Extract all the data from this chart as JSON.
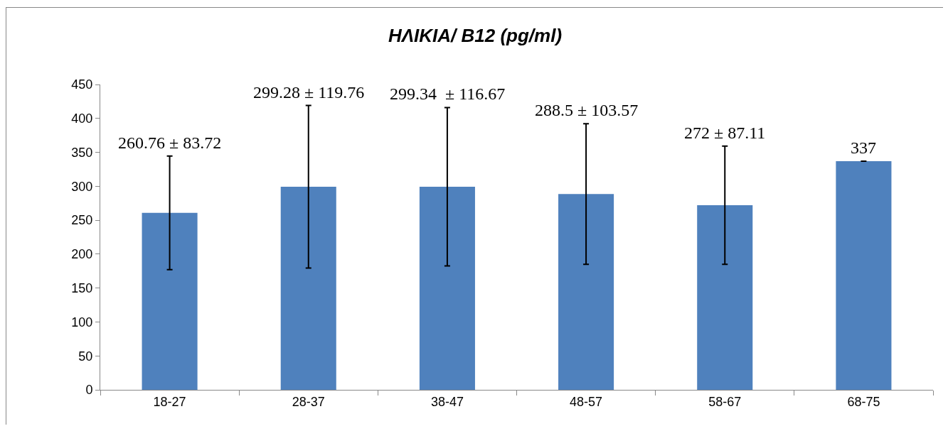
{
  "chart_data": {
    "type": "bar",
    "title": "ΗΛΙΚΙΑ/ B12 (pg/ml)",
    "categories": [
      "18-27",
      "28-37",
      "38-47",
      "48-57",
      "58-67",
      "68-75"
    ],
    "values": [
      260.76,
      299.28,
      299.34,
      288.5,
      272,
      337
    ],
    "errors": [
      83.72,
      119.76,
      116.67,
      103.57,
      87.11,
      0
    ],
    "annotations": [
      {
        "text": "260.76 ± 83.72",
        "x": "18-27",
        "y": 344.48
      },
      {
        "text": "299.28 ± 119.76",
        "x": "28-37",
        "y": 419.04
      },
      {
        "text": "299.34  ± 116.67",
        "x": "38-47",
        "y": 416.01
      },
      {
        "text": "288.5 ± 103.57",
        "x": "48-57",
        "y": 392.07
      },
      {
        "text": "272 ± 87.11",
        "x": "58-67",
        "y": 359.11
      },
      {
        "text": "337",
        "x": "68-75",
        "y": 337
      }
    ],
    "color": "#4f81bd",
    "ylim": [
      0,
      450
    ],
    "yticks": [
      0,
      50,
      100,
      150,
      200,
      250,
      300,
      350,
      400,
      450
    ],
    "grid": false
  }
}
